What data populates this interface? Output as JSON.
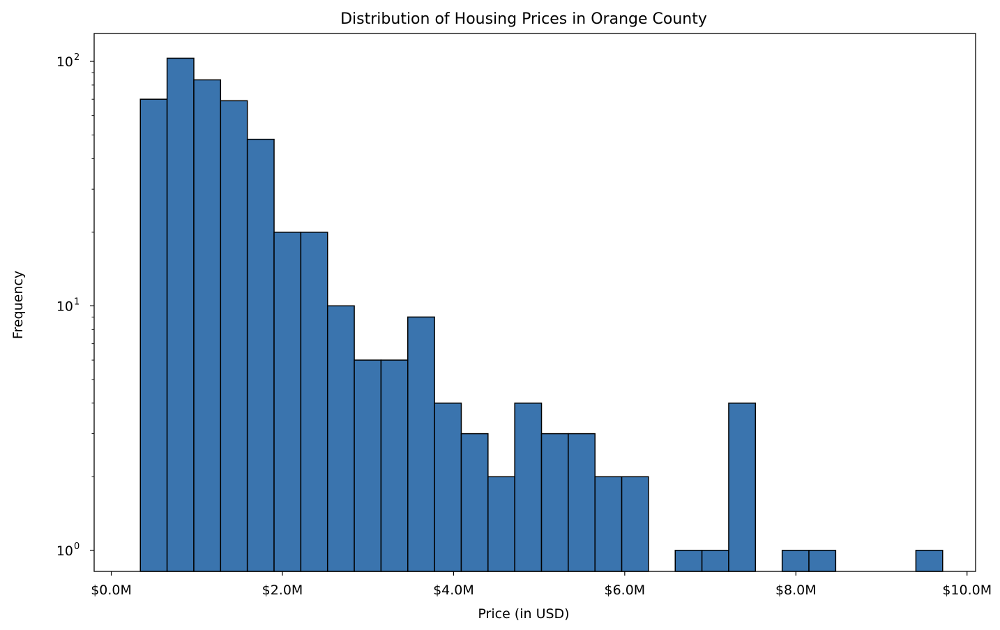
{
  "chart_data": {
    "type": "bar",
    "title": "Distribution of Housing Prices in Orange County",
    "xlabel": "Price (in USD)",
    "ylabel": "Frequency",
    "y_scale": "log",
    "xlim": [
      -0.2,
      10.1
    ],
    "ylim": [
      0.82,
      130
    ],
    "x_unit": "$M",
    "x_ticks": [
      {
        "value": 0,
        "label": "$0.0M"
      },
      {
        "value": 2,
        "label": "$2.0M"
      },
      {
        "value": 4,
        "label": "$4.0M"
      },
      {
        "value": 6,
        "label": "$6.0M"
      },
      {
        "value": 8,
        "label": "$8.0M"
      },
      {
        "value": 10,
        "label": "$10.0M"
      }
    ],
    "y_ticks": [
      {
        "value": 1,
        "base": "10",
        "exp": "0"
      },
      {
        "value": 10,
        "base": "10",
        "exp": "1"
      },
      {
        "value": 100,
        "base": "10",
        "exp": "2"
      }
    ],
    "bin_start": 0.34,
    "bin_width": 0.3125,
    "counts": [
      70,
      103,
      84,
      69,
      48,
      20,
      20,
      10,
      6,
      6,
      9,
      4,
      3,
      2,
      4,
      3,
      3,
      2,
      2,
      0,
      1,
      1,
      4,
      0,
      1,
      1,
      0,
      0,
      0,
      1
    ],
    "bar_color": "#3a74ae",
    "edge_color": "#000000",
    "grid": false,
    "legend": "none"
  }
}
